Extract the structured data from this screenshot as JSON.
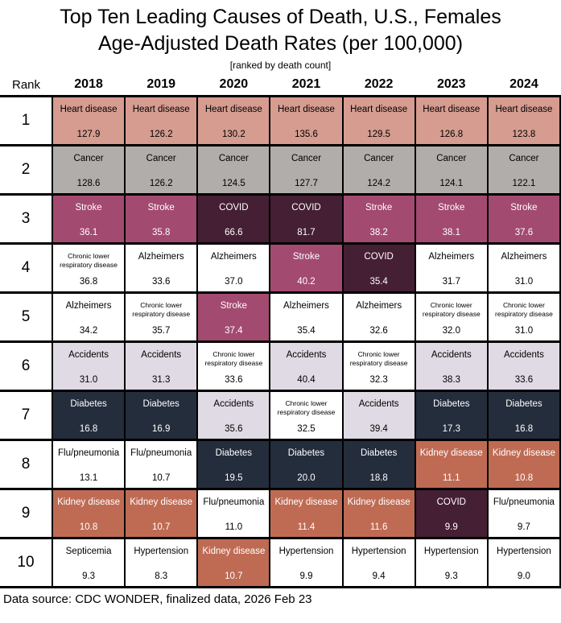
{
  "header": {
    "title_line1": "Top Ten Leading Causes of Death, U.S., Females",
    "title_line2": "Age-Adjusted Death Rates (per 100,000)",
    "subtitle": "[ranked by death count]"
  },
  "footer": {
    "text": "Data source: CDC WONDER, finalized data, 2026 Feb 23"
  },
  "chart_data": {
    "type": "table",
    "title": "Top Ten Leading Causes of Death, U.S., Females — Age-Adjusted Death Rates (per 100,000)",
    "subtitle": "[ranked by death count]",
    "rank_header": "Rank",
    "years": [
      "2018",
      "2019",
      "2020",
      "2021",
      "2022",
      "2023",
      "2024"
    ],
    "cause_colors": {
      "Heart disease": {
        "bg": "#d69c90",
        "fg": "#000000"
      },
      "Cancer": {
        "bg": "#b1adaa",
        "fg": "#000000"
      },
      "Stroke": {
        "bg": "#a34a70",
        "fg": "#ffffff"
      },
      "COVID": {
        "bg": "#451f33",
        "fg": "#ffffff"
      },
      "Chronic lower respiratory disease": {
        "bg": "#ffffff",
        "fg": "#000000",
        "small": true
      },
      "Alzheimers": {
        "bg": "#ffffff",
        "fg": "#000000"
      },
      "Accidents": {
        "bg": "#e0dae4",
        "fg": "#000000"
      },
      "Diabetes": {
        "bg": "#242d3c",
        "fg": "#ffffff"
      },
      "Flu/pneumonia": {
        "bg": "#ffffff",
        "fg": "#000000"
      },
      "Kidney disease": {
        "bg": "#bf6b54",
        "fg": "#ffffff"
      },
      "Septicemia": {
        "bg": "#ffffff",
        "fg": "#000000"
      },
      "Hypertension": {
        "bg": "#ffffff",
        "fg": "#000000"
      }
    },
    "rows": [
      {
        "rank": "1",
        "cells": [
          [
            "Heart disease",
            "127.9"
          ],
          [
            "Heart disease",
            "126.2"
          ],
          [
            "Heart disease",
            "130.2"
          ],
          [
            "Heart disease",
            "135.6"
          ],
          [
            "Heart disease",
            "129.5"
          ],
          [
            "Heart disease",
            "126.8"
          ],
          [
            "Heart disease",
            "123.8"
          ]
        ]
      },
      {
        "rank": "2",
        "cells": [
          [
            "Cancer",
            "128.6"
          ],
          [
            "Cancer",
            "126.2"
          ],
          [
            "Cancer",
            "124.5"
          ],
          [
            "Cancer",
            "127.7"
          ],
          [
            "Cancer",
            "124.2"
          ],
          [
            "Cancer",
            "124.1"
          ],
          [
            "Cancer",
            "122.1"
          ]
        ]
      },
      {
        "rank": "3",
        "cells": [
          [
            "Stroke",
            "36.1"
          ],
          [
            "Stroke",
            "35.8"
          ],
          [
            "COVID",
            "66.6"
          ],
          [
            "COVID",
            "81.7"
          ],
          [
            "Stroke",
            "38.2"
          ],
          [
            "Stroke",
            "38.1"
          ],
          [
            "Stroke",
            "37.6"
          ]
        ]
      },
      {
        "rank": "4",
        "cells": [
          [
            "Chronic lower respiratory disease",
            "36.8"
          ],
          [
            "Alzheimers",
            "33.6"
          ],
          [
            "Alzheimers",
            "37.0"
          ],
          [
            "Stroke",
            "40.2"
          ],
          [
            "COVID",
            "35.4"
          ],
          [
            "Alzheimers",
            "31.7"
          ],
          [
            "Alzheimers",
            "31.0"
          ]
        ]
      },
      {
        "rank": "5",
        "cells": [
          [
            "Alzheimers",
            "34.2"
          ],
          [
            "Chronic lower respiratory disease",
            "35.7"
          ],
          [
            "Stroke",
            "37.4"
          ],
          [
            "Alzheimers",
            "35.4"
          ],
          [
            "Alzheimers",
            "32.6"
          ],
          [
            "Chronic lower respiratory disease",
            "32.0"
          ],
          [
            "Chronic lower respiratory disease",
            "31.0"
          ]
        ]
      },
      {
        "rank": "6",
        "cells": [
          [
            "Accidents",
            "31.0"
          ],
          [
            "Accidents",
            "31.3"
          ],
          [
            "Chronic lower respiratory disease",
            "33.6"
          ],
          [
            "Accidents",
            "40.4"
          ],
          [
            "Chronic lower respiratory disease",
            "32.3"
          ],
          [
            "Accidents",
            "38.3"
          ],
          [
            "Accidents",
            "33.6"
          ]
        ]
      },
      {
        "rank": "7",
        "cells": [
          [
            "Diabetes",
            "16.8"
          ],
          [
            "Diabetes",
            "16.9"
          ],
          [
            "Accidents",
            "35.6"
          ],
          [
            "Chronic lower respiratory disease",
            "32.5"
          ],
          [
            "Accidents",
            "39.4"
          ],
          [
            "Diabetes",
            "17.3"
          ],
          [
            "Diabetes",
            "16.8"
          ]
        ]
      },
      {
        "rank": "8",
        "cells": [
          [
            "Flu/pneumonia",
            "13.1"
          ],
          [
            "Flu/pneumonia",
            "10.7"
          ],
          [
            "Diabetes",
            "19.5"
          ],
          [
            "Diabetes",
            "20.0"
          ],
          [
            "Diabetes",
            "18.8"
          ],
          [
            "Kidney disease",
            "11.1"
          ],
          [
            "Kidney disease",
            "10.8"
          ]
        ]
      },
      {
        "rank": "9",
        "cells": [
          [
            "Kidney disease",
            "10.8"
          ],
          [
            "Kidney disease",
            "10.7"
          ],
          [
            "Flu/pneumonia",
            "11.0"
          ],
          [
            "Kidney disease",
            "11.4"
          ],
          [
            "Kidney disease",
            "11.6"
          ],
          [
            "COVID",
            "9.9"
          ],
          [
            "Flu/pneumonia",
            "9.7"
          ]
        ]
      },
      {
        "rank": "10",
        "cells": [
          [
            "Septicemia",
            "9.3"
          ],
          [
            "Hypertension",
            "8.3"
          ],
          [
            "Kidney disease",
            "10.7"
          ],
          [
            "Hypertension",
            "9.9"
          ],
          [
            "Hypertension",
            "9.4"
          ],
          [
            "Hypertension",
            "9.3"
          ],
          [
            "Hypertension",
            "9.0"
          ]
        ]
      }
    ]
  }
}
